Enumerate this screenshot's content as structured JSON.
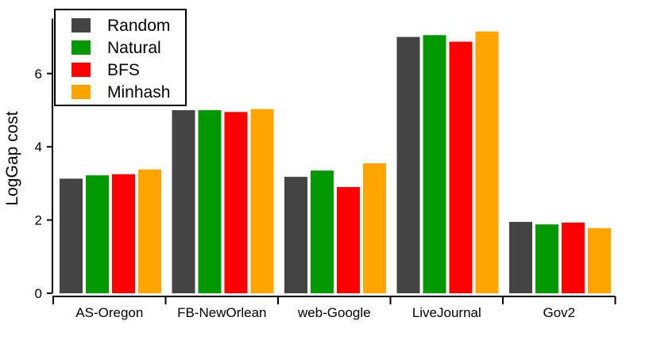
{
  "chart_data": {
    "type": "bar",
    "categories": [
      "AS-Oregon",
      "FB-NewOrlean",
      "web-Google",
      "LiveJournal",
      "Gov2"
    ],
    "series": [
      {
        "name": "Random",
        "color": "#444444",
        "values": [
          3.13,
          5.0,
          3.18,
          7.0,
          1.95
        ]
      },
      {
        "name": "Natural",
        "color": "#009900",
        "values": [
          3.22,
          5.0,
          3.35,
          7.05,
          1.88
        ]
      },
      {
        "name": "BFS",
        "color": "#ff0000",
        "values": [
          3.25,
          4.95,
          2.9,
          6.87,
          1.93
        ]
      },
      {
        "name": "Minhash",
        "color": "#ffa500",
        "values": [
          3.38,
          5.03,
          3.55,
          7.15,
          1.78
        ]
      }
    ],
    "ylabel": "LogGap cost",
    "xlabel": "",
    "ylim": [
      0,
      7.5
    ],
    "yticks": [
      0,
      2,
      4,
      6
    ],
    "legend_position": "top-left",
    "grid": false
  }
}
